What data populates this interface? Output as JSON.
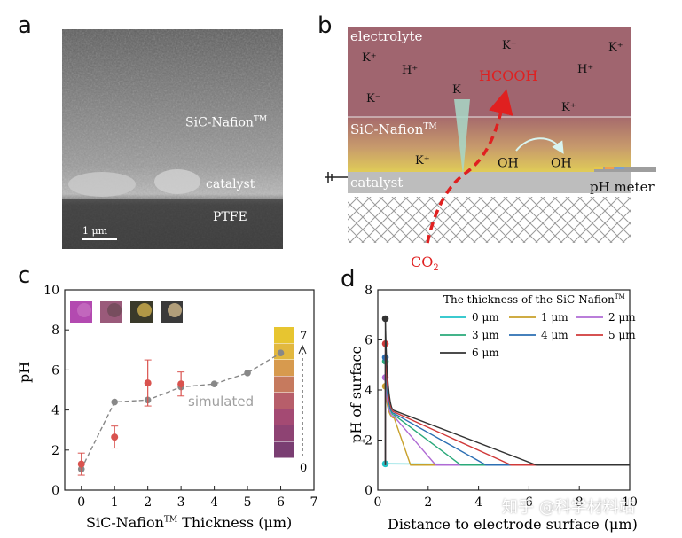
{
  "panels": {
    "a": {
      "label": "a",
      "layer_nafion": "SiC-Nafion",
      "layer_catalyst": "catalyst",
      "layer_ptfe": "PTFE",
      "scale_bar": "1 μm"
    },
    "b": {
      "label": "b",
      "electrolyte": "electrolyte",
      "nafion": "SiC-Nafion",
      "catalyst": "catalyst",
      "ph_meter": "pH meter",
      "product": "HCOOH",
      "reactant": "CO",
      "reactant_sub": "2",
      "ions_electrolyte": [
        "K⁺",
        "H⁺",
        "K⁻",
        "K⁺",
        "K⁻",
        "K",
        "K⁺",
        "H⁺"
      ],
      "ion_layer": "K⁺",
      "oh_1": "OH",
      "oh_2": "OH",
      "colors": {
        "electrolyte": "#a0656f",
        "nafion_top": "#a66a6c",
        "nafion_bottom": "#dcc65a",
        "catalyst": "#bdbdbd",
        "arrow_path": "#e02020",
        "product": "#e02020"
      }
    },
    "c": {
      "label": "c",
      "simulated_label": "simulated",
      "ylabel": "pH",
      "xlabel_pre": "SiC-Nafion",
      "xlabel_post": " Thickness (μm)",
      "scale_top": "7",
      "scale_bottom": "0"
    },
    "d": {
      "label": "d",
      "ylabel": "pH of surface",
      "xlabel": "Distance to electrode surface (μm)",
      "legend_title": "The thickness of the SiC-Nafion"
    },
    "trademark": "TM"
  },
  "watermark": "知乎 @科学材料站",
  "chart_data": [
    {
      "type": "scatter",
      "panel": "c",
      "xlabel": "SiC-Nafion Thickness (μm)",
      "ylabel": "pH",
      "xlim": [
        -0.5,
        7
      ],
      "ylim": [
        0,
        10
      ],
      "xticks": [
        0,
        1,
        2,
        3,
        4,
        5,
        6,
        7
      ],
      "yticks": [
        0,
        2,
        4,
        6,
        8,
        10
      ],
      "series": [
        {
          "name": "simulated",
          "color": "#888888",
          "x": [
            0,
            1,
            2,
            3,
            4,
            5,
            6
          ],
          "y": [
            1.05,
            4.4,
            4.5,
            5.15,
            5.3,
            5.85,
            6.85
          ]
        },
        {
          "color": "#d9534f",
          "x": [
            0,
            1,
            2,
            3
          ],
          "y": [
            1.3,
            2.65,
            5.35,
            5.3
          ],
          "err": [
            0.55,
            0.55,
            1.15,
            0.6
          ]
        }
      ]
    },
    {
      "type": "line",
      "panel": "d",
      "xlabel": "Distance to electrode surface (μm)",
      "ylabel": "pH of surface",
      "xlim": [
        0,
        10
      ],
      "ylim": [
        0,
        8
      ],
      "xticks": [
        0,
        2,
        4,
        6,
        8,
        10
      ],
      "yticks": [
        0,
        2,
        4,
        6,
        8
      ],
      "series": [
        {
          "name": "0 μm",
          "color": "#1fc3c8",
          "start_x": 0.3,
          "start_y": 1.05,
          "end_x": 10,
          "end_y": 1.0
        },
        {
          "name": "1 μm",
          "color": "#c8a02a",
          "start_x": 0.3,
          "start_y": 4.15,
          "end_x": 1.3,
          "end_y": 1.0
        },
        {
          "name": "2 μm",
          "color": "#b06bd4",
          "start_x": 0.3,
          "start_y": 4.5,
          "end_x": 2.3,
          "end_y": 1.0
        },
        {
          "name": "3 μm",
          "color": "#2aa97a",
          "start_x": 0.3,
          "start_y": 5.15,
          "end_x": 3.3,
          "end_y": 1.0
        },
        {
          "name": "4 μm",
          "color": "#2c6fb3",
          "start_x": 0.3,
          "start_y": 5.3,
          "end_x": 4.3,
          "end_y": 1.0
        },
        {
          "name": "5 μm",
          "color": "#d03a3a",
          "start_x": 0.3,
          "start_y": 5.85,
          "end_x": 5.3,
          "end_y": 1.0
        },
        {
          "name": "6 μm",
          "color": "#333333",
          "start_x": 0.3,
          "start_y": 6.85,
          "end_x": 6.3,
          "end_y": 1.0
        }
      ]
    }
  ]
}
